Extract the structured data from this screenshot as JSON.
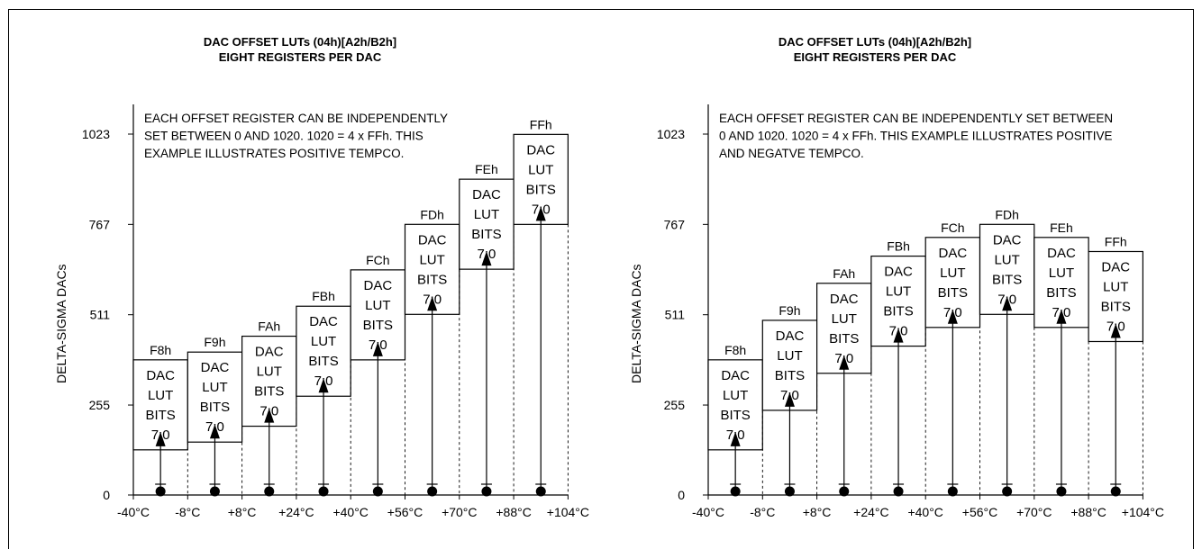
{
  "y_axis_label": "DELTA-SIGMA DACs",
  "y_ticks": [
    "1023",
    "767",
    "511",
    "255",
    "0"
  ],
  "x_ticks": [
    "-40°C",
    "-8°C",
    "+8°C",
    "+24°C",
    "+40°C",
    "+56°C",
    "+70°C",
    "+88°C",
    "+104°C"
  ],
  "box_text": [
    "DAC",
    "LUT",
    "BITS",
    "7:0"
  ],
  "panels": [
    {
      "title_line1": "DAC OFFSET LUTs (04h)[A2h/B2h]",
      "title_line2": "EIGHT REGISTERS PER DAC",
      "note_lines": [
        "EACH OFFSET REGISTER CAN BE INDEPENDENTLY",
        "SET BETWEEN 0 AND 1020. 1020 = 4 x FFh. THIS",
        "EXAMPLE ILLUSTRATES POSITIVE TEMPCO."
      ],
      "registers": [
        {
          "label": "F8h",
          "offset": 128
        },
        {
          "label": "F9h",
          "offset": 150
        },
        {
          "label": "FAh",
          "offset": 195
        },
        {
          "label": "FBh",
          "offset": 280
        },
        {
          "label": "FCh",
          "offset": 383
        },
        {
          "label": "FDh",
          "offset": 512
        },
        {
          "label": "FEh",
          "offset": 640
        },
        {
          "label": "FFh",
          "offset": 767
        }
      ]
    },
    {
      "title_line1": "DAC OFFSET LUTs (04h)[A2h/B2h]",
      "title_line2": "EIGHT REGISTERS PER DAC",
      "note_lines": [
        "EACH OFFSET REGISTER CAN BE INDEPENDENTLY SET BETWEEN",
        "0 AND 1020. 1020 = 4 x FFh. THIS EXAMPLE ILLUSTRATES POSITIVE",
        "AND NEGATVE TEMPCO."
      ],
      "registers": [
        {
          "label": "F8h",
          "offset": 128
        },
        {
          "label": "F9h",
          "offset": 240
        },
        {
          "label": "FAh",
          "offset": 345
        },
        {
          "label": "FBh",
          "offset": 422
        },
        {
          "label": "FCh",
          "offset": 475
        },
        {
          "label": "FDh",
          "offset": 512
        },
        {
          "label": "FEh",
          "offset": 475
        },
        {
          "label": "FFh",
          "offset": 435
        }
      ]
    }
  ]
}
